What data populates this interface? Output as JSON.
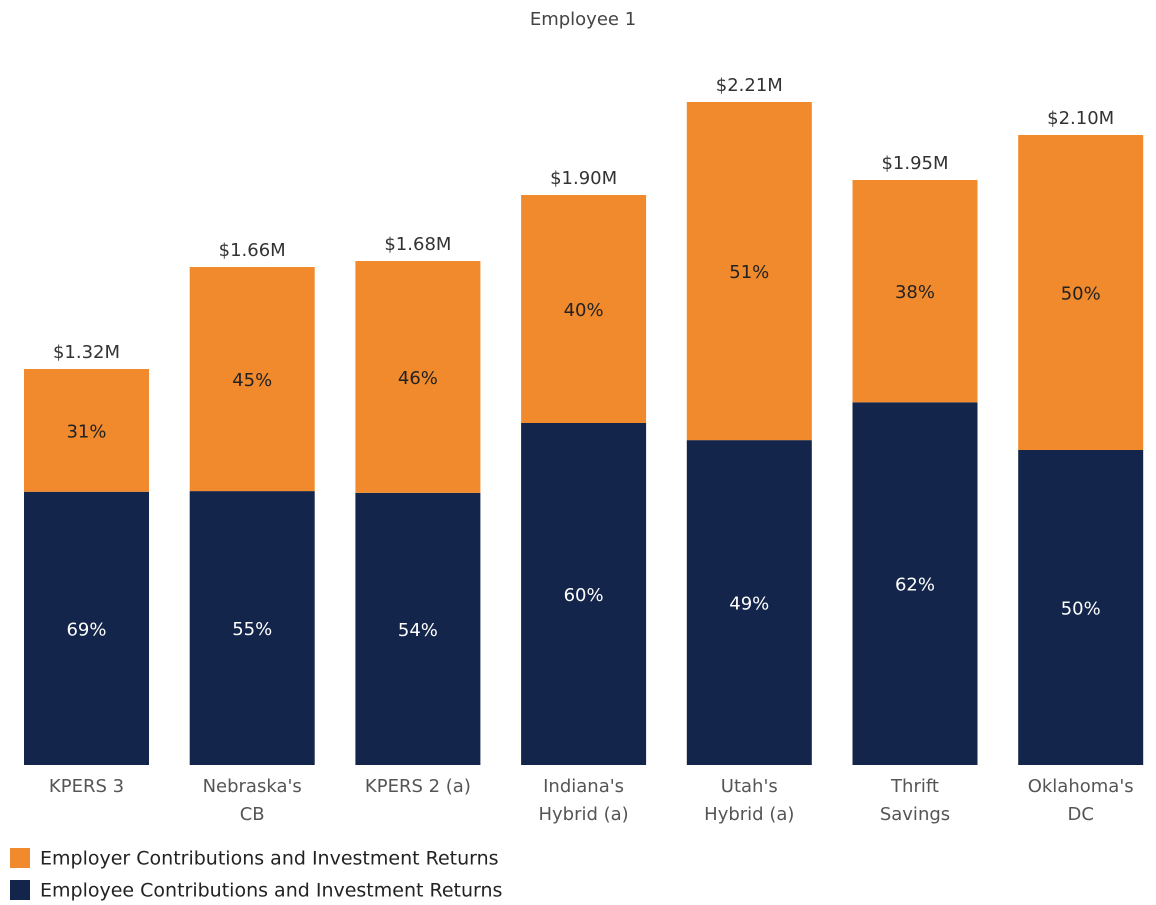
{
  "chart_data": {
    "type": "bar",
    "stacked": true,
    "title": "Employee 1",
    "categories": [
      [
        "KPERS 3"
      ],
      [
        "Nebraska's",
        "CB"
      ],
      [
        "KPERS 2 (a)"
      ],
      [
        "Indiana's",
        "Hybrid (a)"
      ],
      [
        "Utah's",
        "Hybrid (a)"
      ],
      [
        "Thrift",
        "Savings"
      ],
      [
        "Oklahoma's",
        "DC"
      ]
    ],
    "series": [
      {
        "name": "Employee Contributions and Investment Returns",
        "color": "#13254a",
        "values": [
          69,
          55,
          54,
          60,
          49,
          62,
          50
        ],
        "value_labels": [
          "69%",
          "55%",
          "54%",
          "60%",
          "49%",
          "62%",
          "50%"
        ]
      },
      {
        "name": "Employer Contributions and Investment Returns",
        "color": "#f08a2c",
        "values": [
          31,
          45,
          46,
          40,
          51,
          38,
          50
        ],
        "value_labels": [
          "31%",
          "45%",
          "46%",
          "40%",
          "51%",
          "38%",
          "50%"
        ]
      }
    ],
    "totals": {
      "values": [
        1.32,
        1.66,
        1.68,
        1.9,
        2.21,
        1.95,
        2.1
      ],
      "value_labels": [
        "$1.32M",
        "$1.66M",
        "$1.68M",
        "$1.90M",
        "$2.21M",
        "$1.95M",
        "$2.10M"
      ]
    },
    "legend": "bottom-left"
  }
}
